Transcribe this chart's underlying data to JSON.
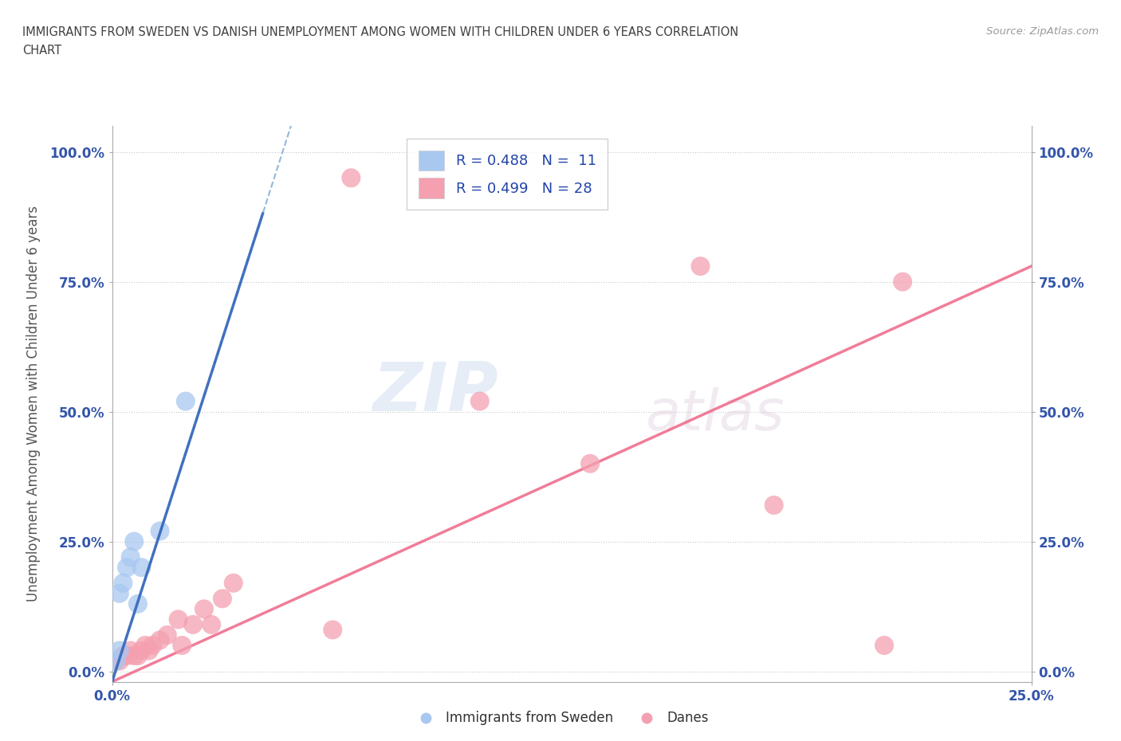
{
  "title_line1": "IMMIGRANTS FROM SWEDEN VS DANISH UNEMPLOYMENT AMONG WOMEN WITH CHILDREN UNDER 6 YEARS CORRELATION",
  "title_line2": "CHART",
  "source_text": "Source: ZipAtlas.com",
  "ylabel": "Unemployment Among Women with Children Under 6 years",
  "xlim": [
    0.0,
    0.25
  ],
  "ylim": [
    -0.02,
    1.05
  ],
  "ytick_values": [
    0.0,
    0.25,
    0.5,
    0.75,
    1.0
  ],
  "ytick_labels": [
    "0.0%",
    "25.0%",
    "50.0%",
    "75.0%",
    "100.0%"
  ],
  "xtick_values": [
    0.0,
    0.25
  ],
  "xtick_labels": [
    "0.0%",
    "25.0%"
  ],
  "blue_scatter_x": [
    0.001,
    0.002,
    0.002,
    0.003,
    0.004,
    0.005,
    0.006,
    0.007,
    0.008,
    0.013,
    0.02
  ],
  "blue_scatter_y": [
    0.02,
    0.04,
    0.15,
    0.17,
    0.2,
    0.22,
    0.25,
    0.13,
    0.2,
    0.27,
    0.52
  ],
  "pink_scatter_x": [
    0.001,
    0.002,
    0.003,
    0.004,
    0.005,
    0.006,
    0.007,
    0.008,
    0.009,
    0.01,
    0.011,
    0.013,
    0.015,
    0.018,
    0.019,
    0.022,
    0.025,
    0.027,
    0.03,
    0.033,
    0.06,
    0.065,
    0.1,
    0.13,
    0.16,
    0.18,
    0.21,
    0.215
  ],
  "pink_scatter_y": [
    0.02,
    0.02,
    0.03,
    0.03,
    0.04,
    0.03,
    0.03,
    0.04,
    0.05,
    0.04,
    0.05,
    0.06,
    0.07,
    0.1,
    0.05,
    0.09,
    0.12,
    0.09,
    0.14,
    0.17,
    0.08,
    0.95,
    0.52,
    0.4,
    0.78,
    0.32,
    0.05,
    0.75
  ],
  "blue_line_slope": 22.0,
  "blue_line_intercept": -0.02,
  "pink_line_slope": 3.2,
  "pink_line_intercept": -0.02,
  "blue_color": "#a8c8f0",
  "pink_color": "#f4a0b0",
  "blue_line_color": "#6699cc",
  "pink_line_color": "#ee6688",
  "legend_blue_label": "R = 0.488   N =  11",
  "legend_pink_label": "R = 0.499   N = 28",
  "watermark_zip": "ZIP",
  "watermark_atlas": "atlas",
  "title_color": "#404040",
  "axis_label_color": "#555555",
  "tick_color": "#3355aa",
  "grid_color": "#bbbbbb",
  "background_color": "#ffffff"
}
